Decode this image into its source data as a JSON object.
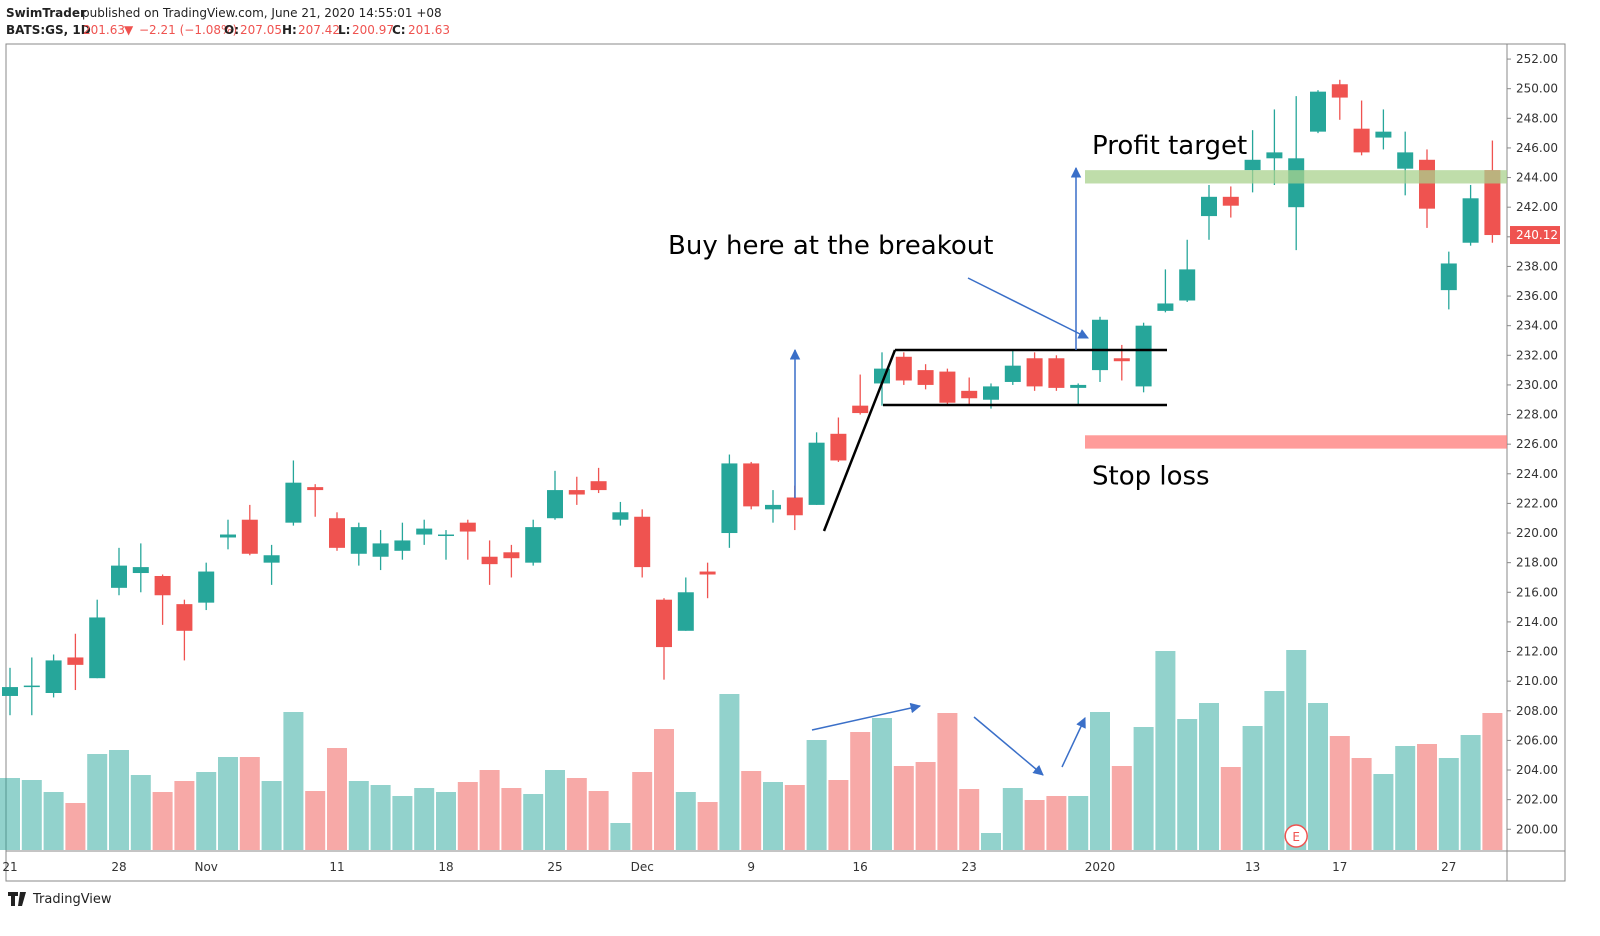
{
  "header": {
    "author": "SwimTrader",
    "published": "published on TradingView.com, June 21, 2020 14:55:01 +08",
    "symbol": "BATS:GS, 1D",
    "last": "201.63",
    "arrow": "▼",
    "change": "−2.21 (−1.08%)",
    "o_label": "O:",
    "o": "207.05",
    "h_label": "H:",
    "h": "207.42",
    "l_label": "L:",
    "l": "200.97",
    "c_label": "C:",
    "c": "201.63"
  },
  "footer": {
    "brand": "TradingView"
  },
  "chart_data": {
    "type": "candlestick",
    "categories": [
      "21",
      null,
      null,
      null,
      null,
      "28",
      null,
      null,
      null,
      "Nov",
      null,
      null,
      null,
      null,
      null,
      "11",
      null,
      null,
      null,
      null,
      "18",
      null,
      null,
      null,
      null,
      "25",
      null,
      null,
      null,
      "Dec",
      null,
      null,
      null,
      null,
      "9",
      null,
      null,
      null,
      null,
      "16",
      null,
      null,
      null,
      null,
      "23",
      null,
      null,
      null,
      null,
      null,
      "2020",
      null,
      null,
      null,
      null,
      null,
      null,
      "13",
      null,
      null,
      null,
      "17",
      null,
      null,
      null,
      null,
      "27",
      null,
      null
    ],
    "open": [
      209.0,
      209.6,
      209.2,
      211.6,
      210.2,
      216.3,
      217.3,
      217.1,
      215.2,
      215.3,
      219.7,
      220.9,
      218.0,
      220.7,
      223.1,
      221.0,
      218.6,
      218.4,
      218.8,
      219.9,
      219.8,
      220.7,
      218.4,
      218.7,
      218.0,
      221.0,
      222.9,
      223.5,
      220.9,
      221.1,
      215.5,
      213.4,
      217.4,
      220.0,
      224.7,
      221.6,
      222.4,
      221.9,
      226.7,
      228.6,
      230.1,
      231.9,
      231.0,
      230.9,
      229.6,
      229.0,
      230.2,
      231.8,
      231.8,
      229.8,
      231.0,
      231.8,
      229.9,
      235.0,
      235.7,
      241.4,
      242.7,
      244.5,
      245.3,
      242.0,
      247.1,
      250.3,
      247.3,
      246.7,
      244.6,
      245.2,
      236.4,
      239.6,
      244.5
    ],
    "high": [
      210.9,
      211.6,
      211.8,
      213.2,
      215.5,
      219.0,
      219.3,
      217.2,
      215.5,
      218.0,
      220.9,
      221.9,
      219.2,
      224.9,
      223.3,
      221.4,
      220.7,
      220.2,
      220.7,
      220.9,
      220.2,
      220.9,
      219.5,
      219.2,
      220.9,
      224.2,
      223.8,
      224.4,
      222.1,
      221.6,
      215.6,
      217.0,
      218.0,
      225.3,
      224.8,
      222.9,
      223.2,
      226.8,
      227.8,
      230.7,
      232.2,
      232.2,
      231.4,
      231.1,
      230.5,
      230.1,
      232.4,
      232.2,
      232.0,
      230.1,
      234.6,
      232.7,
      234.2,
      237.8,
      239.8,
      243.5,
      243.4,
      247.2,
      248.6,
      249.5,
      249.9,
      250.6,
      249.2,
      248.6,
      247.1,
      245.9,
      239.0,
      243.5,
      246.5
    ],
    "low": [
      207.7,
      207.7,
      208.9,
      209.4,
      210.2,
      215.8,
      216.0,
      213.8,
      211.4,
      214.8,
      218.9,
      218.5,
      216.5,
      220.5,
      221.1,
      218.8,
      217.8,
      217.5,
      218.2,
      219.2,
      218.2,
      218.2,
      216.5,
      217.0,
      217.8,
      220.9,
      221.9,
      222.7,
      220.5,
      217.0,
      210.1,
      213.4,
      215.6,
      219.0,
      221.6,
      220.7,
      220.2,
      221.9,
      224.8,
      228.0,
      228.6,
      230.0,
      229.7,
      228.7,
      228.6,
      228.4,
      230.0,
      229.6,
      229.6,
      228.6,
      230.2,
      230.3,
      229.5,
      234.9,
      235.6,
      239.8,
      241.3,
      243.0,
      243.5,
      239.1,
      247.0,
      247.9,
      245.5,
      245.9,
      242.8,
      240.6,
      235.1,
      239.4,
      239.6
    ],
    "close": [
      209.6,
      209.7,
      211.4,
      211.1,
      214.3,
      217.8,
      217.7,
      215.8,
      213.4,
      217.4,
      219.9,
      218.6,
      218.5,
      223.4,
      222.9,
      219.0,
      220.4,
      219.3,
      219.5,
      220.3,
      219.9,
      220.1,
      217.9,
      218.3,
      220.4,
      222.9,
      222.6,
      222.9,
      221.4,
      217.7,
      212.3,
      216.0,
      217.2,
      224.7,
      221.8,
      221.9,
      221.2,
      226.1,
      224.9,
      228.1,
      231.1,
      230.3,
      230.0,
      228.8,
      229.1,
      229.9,
      231.3,
      229.9,
      229.8,
      230.0,
      234.4,
      231.6,
      234.0,
      235.5,
      237.8,
      242.7,
      242.1,
      245.2,
      245.7,
      245.3,
      249.8,
      249.4,
      245.7,
      247.1,
      245.7,
      241.9,
      238.2,
      242.6,
      240.12
    ],
    "volume": [
      1.44,
      1.4,
      1.16,
      0.94,
      1.92,
      2.0,
      1.5,
      1.16,
      1.38,
      1.56,
      1.86,
      1.86,
      1.38,
      2.76,
      1.18,
      2.04,
      1.38,
      1.3,
      1.08,
      1.24,
      1.16,
      1.36,
      1.6,
      1.24,
      1.12,
      1.6,
      1.44,
      1.18,
      0.54,
      1.56,
      2.42,
      1.16,
      0.96,
      3.12,
      1.58,
      1.36,
      1.3,
      2.2,
      1.4,
      2.36,
      2.64,
      1.68,
      1.76,
      2.74,
      1.22,
      0.34,
      1.24,
      1.0,
      1.08,
      1.08,
      2.76,
      1.68,
      2.46,
      3.98,
      2.62,
      2.94,
      1.66,
      2.48,
      3.18,
      4.0,
      2.94,
      2.28,
      1.84,
      1.52,
      2.08,
      2.12,
      1.84,
      2.3,
      2.74
    ],
    "up_color": "#26a69a",
    "down_color": "#ef5350",
    "ylim": [
      198.6,
      252.95
    ],
    "yticks": [
      {
        "value": 200,
        "label": "200.00"
      },
      {
        "value": 202,
        "label": "202.00"
      },
      {
        "value": 204,
        "label": "204.00"
      },
      {
        "value": 206,
        "label": "206.00"
      },
      {
        "value": 208,
        "label": "208.00"
      },
      {
        "value": 210,
        "label": "210.00"
      },
      {
        "value": 212,
        "label": "212.00"
      },
      {
        "value": 214,
        "label": "214.00"
      },
      {
        "value": 216,
        "label": "216.00"
      },
      {
        "value": 218,
        "label": "218.00"
      },
      {
        "value": 220,
        "label": "220.00"
      },
      {
        "value": 222,
        "label": "222.00"
      },
      {
        "value": 224,
        "label": "224.00"
      },
      {
        "value": 226,
        "label": "226.00"
      },
      {
        "value": 228,
        "label": "228.00"
      },
      {
        "value": 230,
        "label": "230.00"
      },
      {
        "value": 232,
        "label": "232.00"
      },
      {
        "value": 234,
        "label": "234.00"
      },
      {
        "value": 236,
        "label": "236.00"
      },
      {
        "value": 238,
        "label": "238.00"
      },
      {
        "value": 240,
        "label": "240.00"
      },
      {
        "value": 242,
        "label": "242.00"
      },
      {
        "value": 244,
        "label": "244.00"
      },
      {
        "value": 246,
        "label": "246.00"
      },
      {
        "value": 248,
        "label": "248.00"
      },
      {
        "value": 250,
        "label": "250.00"
      },
      {
        "value": 252,
        "label": "252.00"
      }
    ],
    "zones": [
      {
        "label": "Profit target",
        "range": [
          243.6,
          244.5
        ],
        "color": "#a9d18e"
      },
      {
        "label": "Stop loss",
        "range": [
          225.7,
          226.6
        ],
        "color": "#ff7b78"
      }
    ],
    "annotation": "Buy here at the breakout",
    "earnings_marker": "E",
    "earnings_index": 59
  }
}
